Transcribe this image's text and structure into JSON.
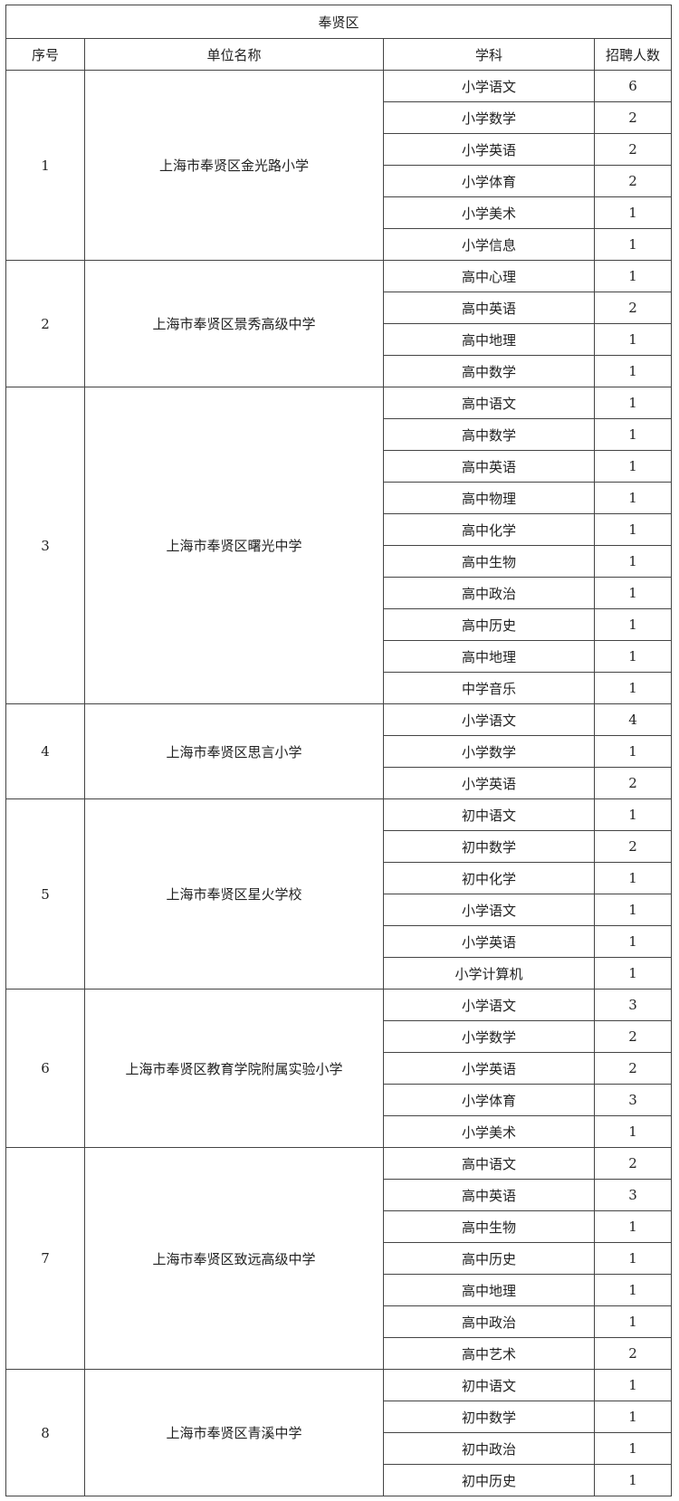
{
  "title": "奉贤区",
  "headers": {
    "index": "序号",
    "unit": "单位名称",
    "subject": "学科",
    "count": "招聘人数"
  },
  "units": [
    {
      "index": "1",
      "name": "上海市奉贤区金光路小学",
      "subjects": [
        [
          "小学语文",
          "6"
        ],
        [
          "小学数学",
          "2"
        ],
        [
          "小学英语",
          "2"
        ],
        [
          "小学体育",
          "2"
        ],
        [
          "小学美术",
          "1"
        ],
        [
          "小学信息",
          "1"
        ]
      ]
    },
    {
      "index": "2",
      "name": "上海市奉贤区景秀高级中学",
      "subjects": [
        [
          "高中心理",
          "1"
        ],
        [
          "高中英语",
          "2"
        ],
        [
          "高中地理",
          "1"
        ],
        [
          "高中数学",
          "1"
        ]
      ]
    },
    {
      "index": "3",
      "name": "上海市奉贤区曙光中学",
      "subjects": [
        [
          "高中语文",
          "1"
        ],
        [
          "高中数学",
          "1"
        ],
        [
          "高中英语",
          "1"
        ],
        [
          "高中物理",
          "1"
        ],
        [
          "高中化学",
          "1"
        ],
        [
          "高中生物",
          "1"
        ],
        [
          "高中政治",
          "1"
        ],
        [
          "高中历史",
          "1"
        ],
        [
          "高中地理",
          "1"
        ],
        [
          "中学音乐",
          "1"
        ]
      ]
    },
    {
      "index": "4",
      "name": "上海市奉贤区思言小学",
      "subjects": [
        [
          "小学语文",
          "4"
        ],
        [
          "小学数学",
          "1"
        ],
        [
          "小学英语",
          "2"
        ]
      ]
    },
    {
      "index": "5",
      "name": "上海市奉贤区星火学校",
      "subjects": [
        [
          "初中语文",
          "1"
        ],
        [
          "初中数学",
          "2"
        ],
        [
          "初中化学",
          "1"
        ],
        [
          "小学语文",
          "1"
        ],
        [
          "小学英语",
          "1"
        ],
        [
          "小学计算机",
          "1"
        ]
      ]
    },
    {
      "index": "6",
      "name": "上海市奉贤区教育学院附属实验小学",
      "subjects": [
        [
          "小学语文",
          "3"
        ],
        [
          "小学数学",
          "2"
        ],
        [
          "小学英语",
          "2"
        ],
        [
          "小学体育",
          "3"
        ],
        [
          "小学美术",
          "1"
        ]
      ]
    },
    {
      "index": "7",
      "name": "上海市奉贤区致远高级中学",
      "subjects": [
        [
          "高中语文",
          "2"
        ],
        [
          "高中英语",
          "3"
        ],
        [
          "高中生物",
          "1"
        ],
        [
          "高中历史",
          "1"
        ],
        [
          "高中地理",
          "1"
        ],
        [
          "高中政治",
          "1"
        ],
        [
          "高中艺术",
          "2"
        ]
      ]
    },
    {
      "index": "8",
      "name": "上海市奉贤区青溪中学",
      "subjects": [
        [
          "初中语文",
          "1"
        ],
        [
          "初中数学",
          "1"
        ],
        [
          "初中政治",
          "1"
        ],
        [
          "初中历史",
          "1"
        ]
      ]
    }
  ]
}
